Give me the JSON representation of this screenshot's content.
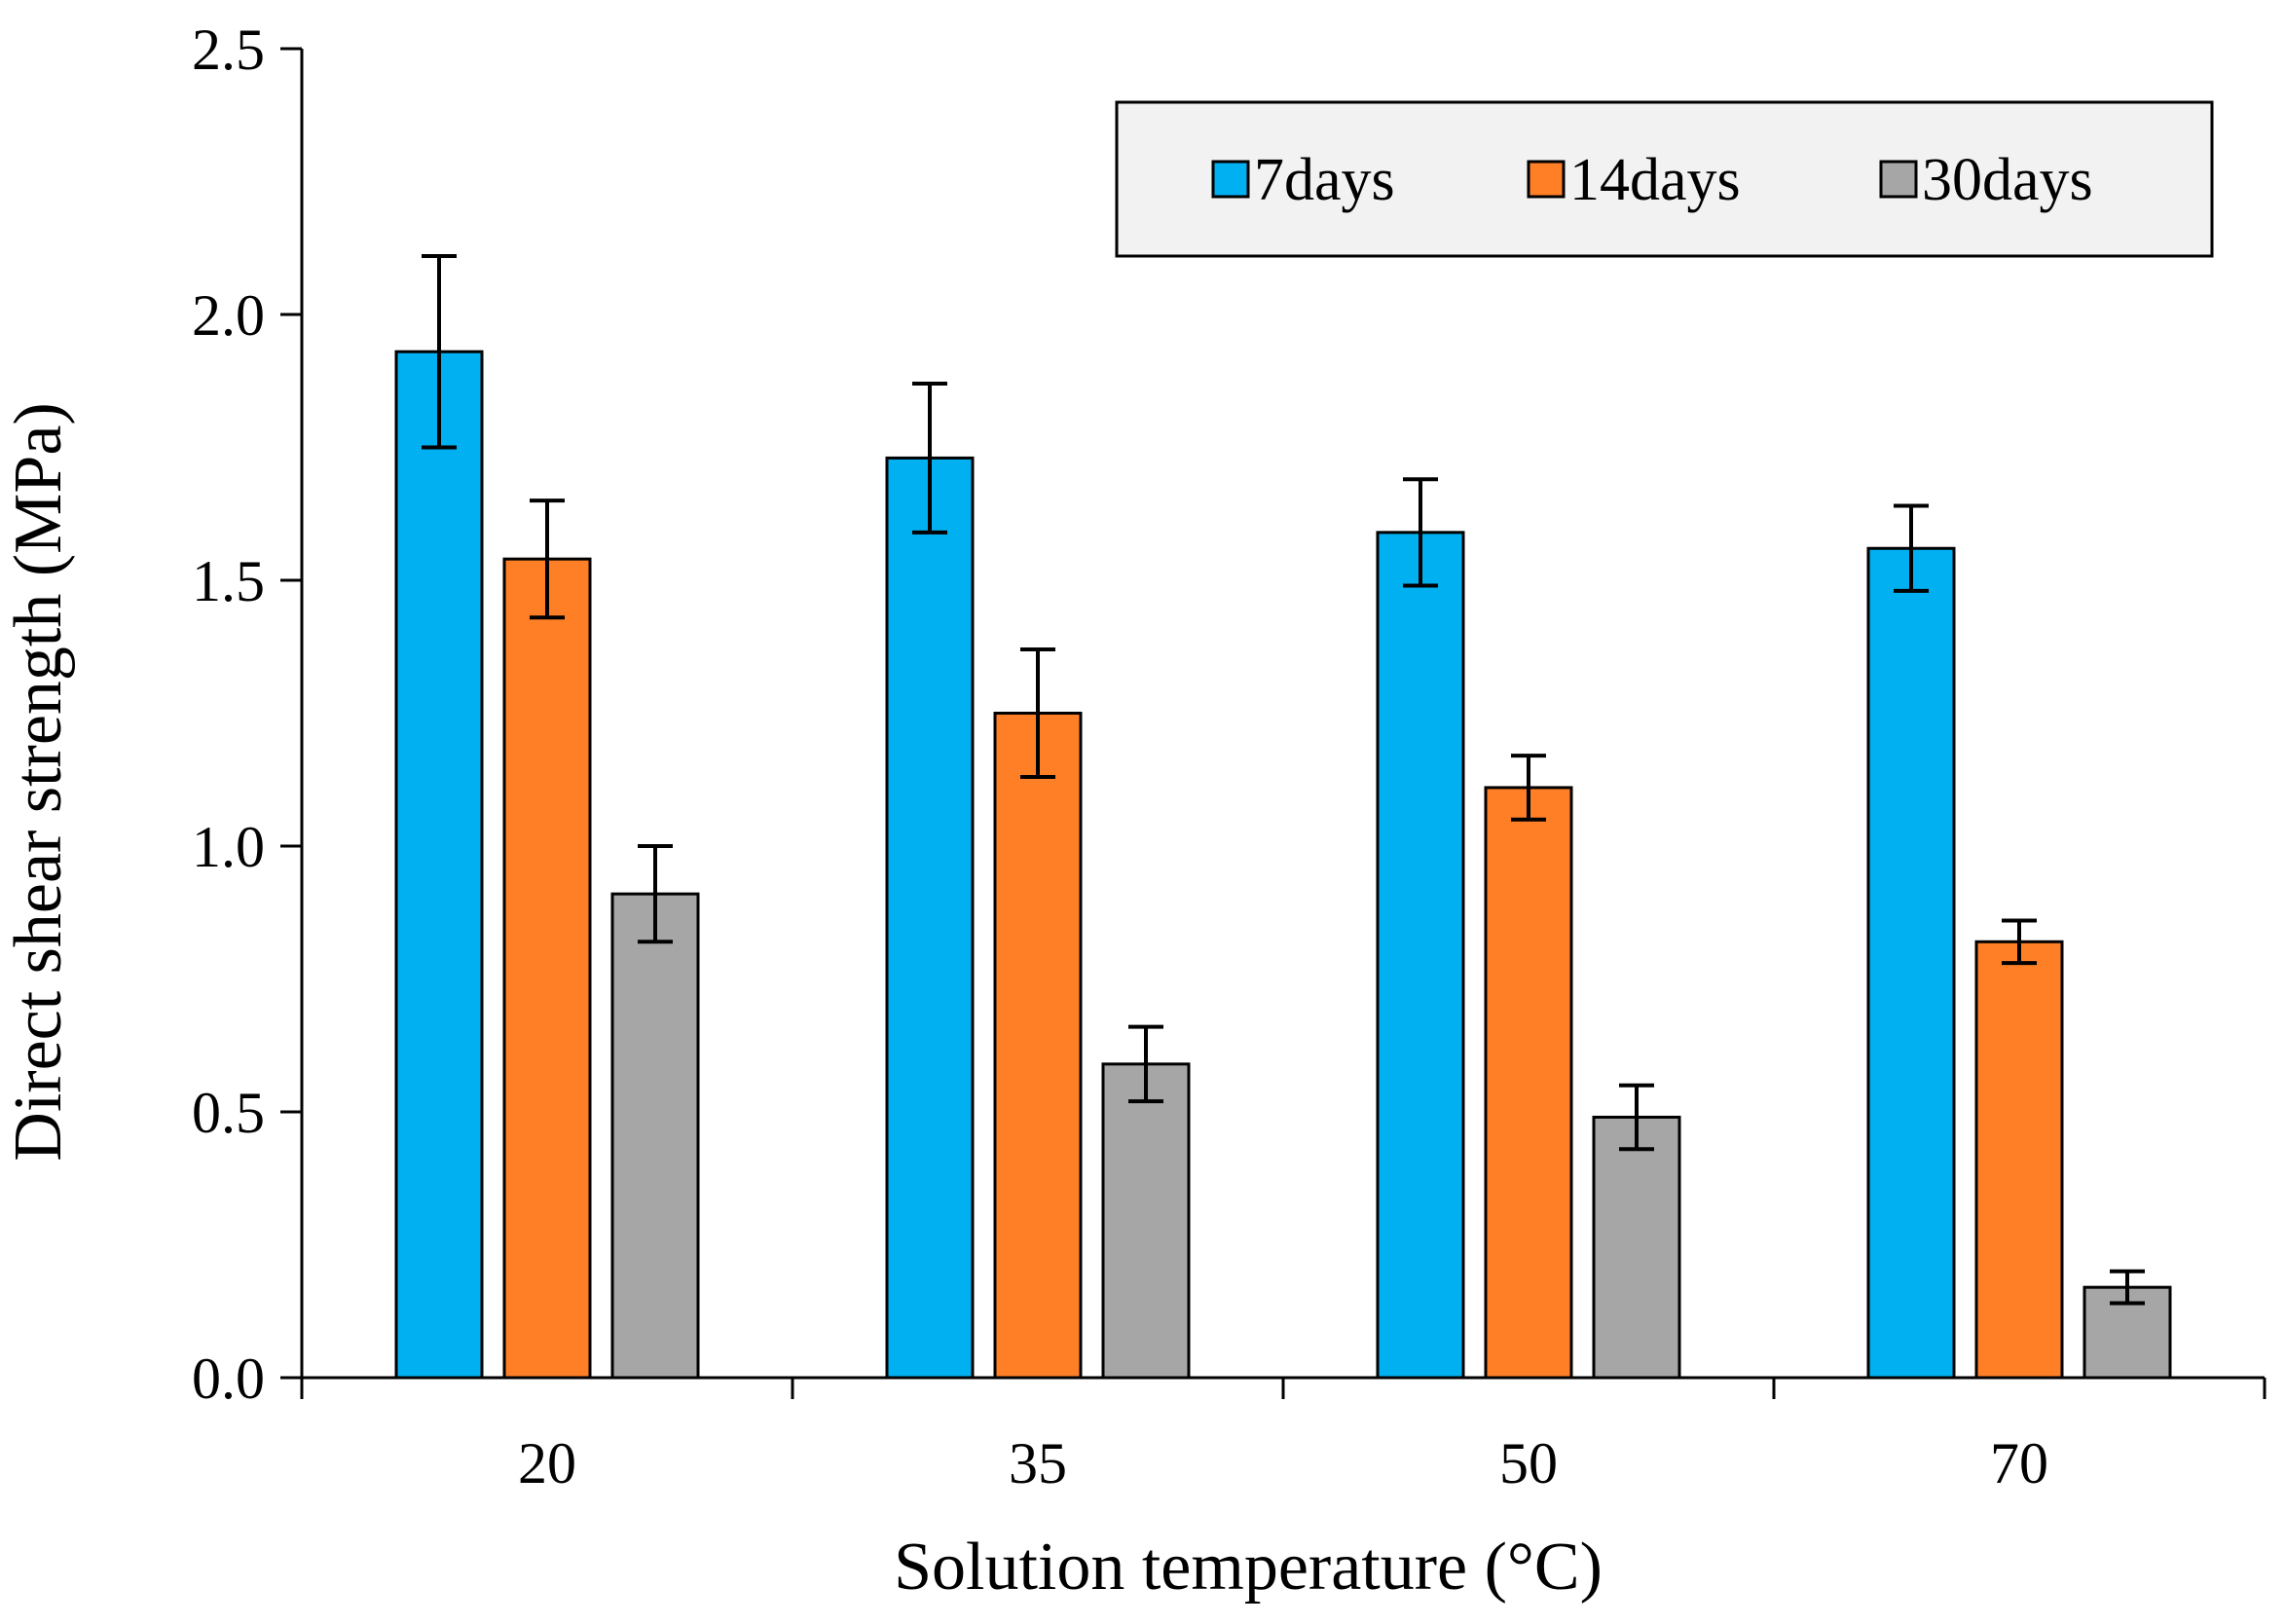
{
  "chart_data": {
    "type": "bar",
    "title": "",
    "xlabel": "Solution temperature (°C)",
    "ylabel": "Direct shear strength (MPa)",
    "categories": [
      "20",
      "35",
      "50",
      "70"
    ],
    "ylim": [
      0,
      2.5
    ],
    "yticks": [
      "0.0",
      "0.5",
      "1.0",
      "1.5",
      "2.0",
      "2.5"
    ],
    "grid": false,
    "legend_position": "top-right",
    "series": [
      {
        "name": "7days",
        "color": "#00B0F0",
        "values": [
          1.93,
          1.73,
          1.59,
          1.56
        ],
        "errors": [
          0.18,
          0.14,
          0.1,
          0.08
        ]
      },
      {
        "name": "14days",
        "color": "#FF7F27",
        "values": [
          1.54,
          1.25,
          1.11,
          0.82
        ],
        "errors": [
          0.11,
          0.12,
          0.06,
          0.04
        ]
      },
      {
        "name": "30days",
        "color": "#A6A6A6",
        "values": [
          0.91,
          0.59,
          0.49,
          0.17
        ],
        "errors": [
          0.09,
          0.07,
          0.06,
          0.03
        ]
      }
    ]
  }
}
